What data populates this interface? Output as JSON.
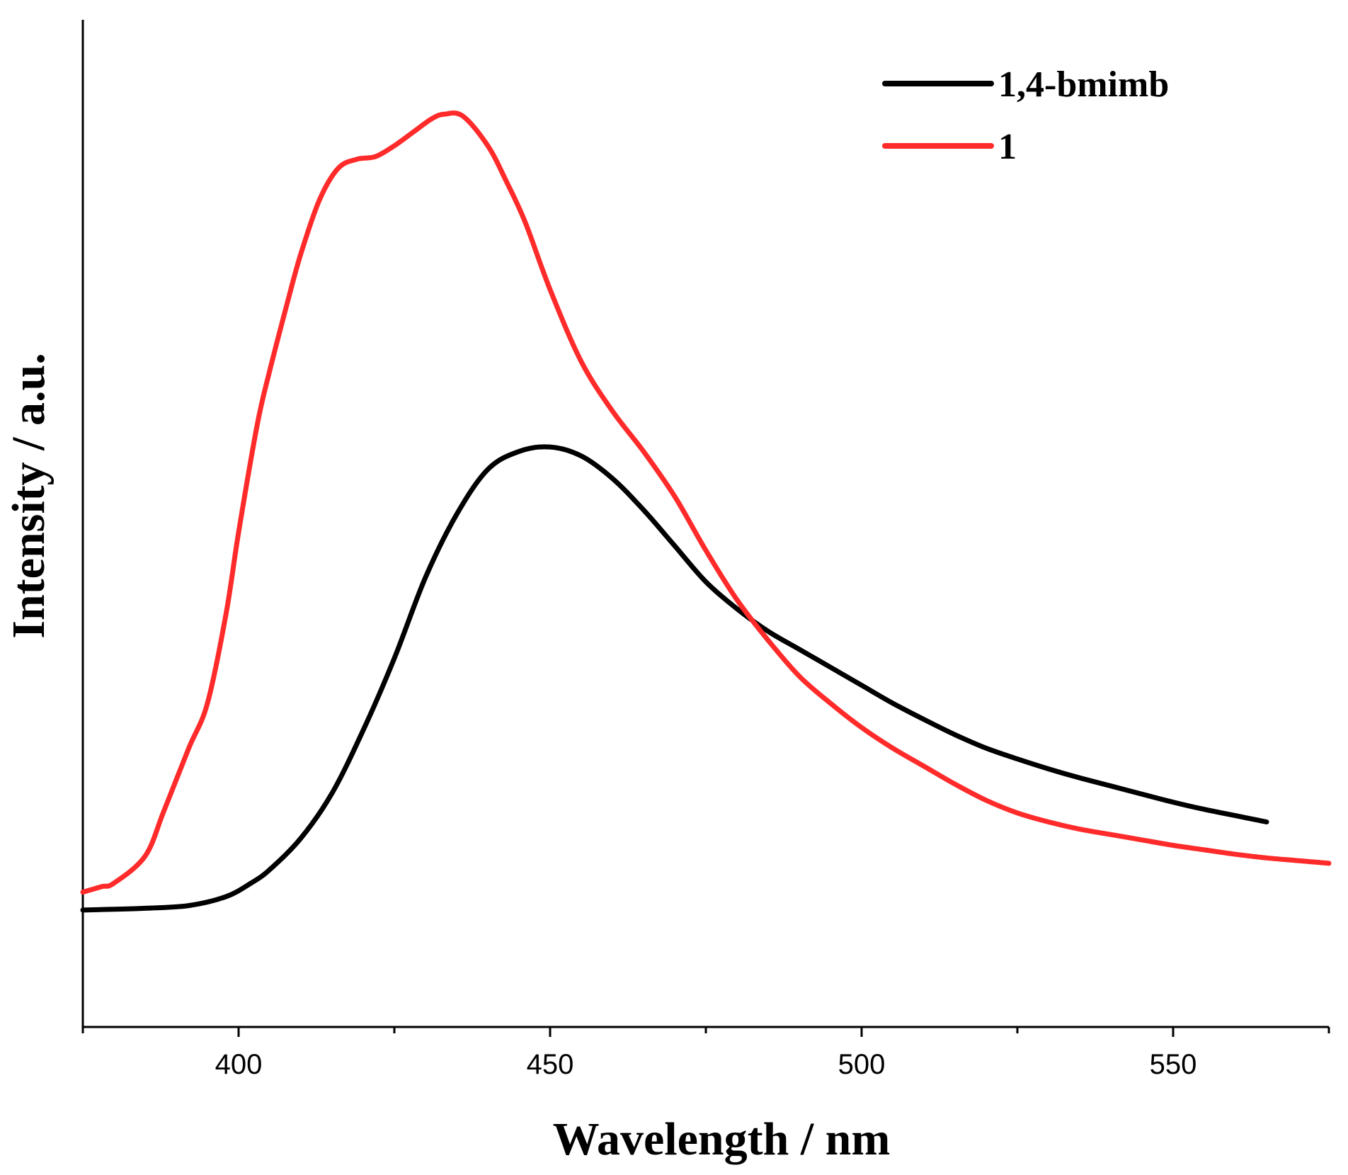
{
  "chart_data": {
    "type": "line",
    "title": "",
    "xlabel": "Wavelength / nm",
    "ylabel": "Intensity / a.u.",
    "xlim": [
      375,
      575
    ],
    "ylim": [
      -0.12,
      1.0
    ],
    "x_ticks_major": [
      400,
      450,
      500,
      550
    ],
    "x_ticks_minor": [
      375,
      425,
      475,
      525,
      575
    ],
    "y_ticks_shown": false,
    "grid": false,
    "legend_position": "top-right",
    "series": [
      {
        "name": "1,4-bmimb",
        "color": "#000000",
        "points": [
          [
            375,
            0.01
          ],
          [
            385,
            0.012
          ],
          [
            392,
            0.015
          ],
          [
            398,
            0.025
          ],
          [
            402,
            0.04
          ],
          [
            405,
            0.055
          ],
          [
            410,
            0.09
          ],
          [
            415,
            0.14
          ],
          [
            420,
            0.21
          ],
          [
            425,
            0.29
          ],
          [
            430,
            0.38
          ],
          [
            435,
            0.45
          ],
          [
            440,
            0.5
          ],
          [
            445,
            0.52
          ],
          [
            450,
            0.525
          ],
          [
            455,
            0.515
          ],
          [
            460,
            0.49
          ],
          [
            465,
            0.455
          ],
          [
            470,
            0.415
          ],
          [
            475,
            0.375
          ],
          [
            480,
            0.345
          ],
          [
            485,
            0.32
          ],
          [
            490,
            0.3
          ],
          [
            495,
            0.28
          ],
          [
            500,
            0.26
          ],
          [
            505,
            0.24
          ],
          [
            510,
            0.222
          ],
          [
            515,
            0.205
          ],
          [
            520,
            0.19
          ],
          [
            525,
            0.178
          ],
          [
            530,
            0.167
          ],
          [
            535,
            0.157
          ],
          [
            540,
            0.148
          ],
          [
            545,
            0.139
          ],
          [
            550,
            0.13
          ],
          [
            555,
            0.122
          ],
          [
            560,
            0.115
          ],
          [
            565,
            0.108
          ]
        ]
      },
      {
        "name": "1",
        "color": "#ff2a2a",
        "points": [
          [
            375,
            0.03
          ],
          [
            378,
            0.036
          ],
          [
            380,
            0.04
          ],
          [
            385,
            0.07
          ],
          [
            388,
            0.12
          ],
          [
            392,
            0.19
          ],
          [
            395,
            0.24
          ],
          [
            398,
            0.34
          ],
          [
            400,
            0.43
          ],
          [
            403,
            0.55
          ],
          [
            405,
            0.61
          ],
          [
            408,
            0.69
          ],
          [
            410,
            0.74
          ],
          [
            413,
            0.8
          ],
          [
            416,
            0.835
          ],
          [
            419,
            0.845
          ],
          [
            422,
            0.848
          ],
          [
            425,
            0.86
          ],
          [
            428,
            0.875
          ],
          [
            431,
            0.89
          ],
          [
            433,
            0.895
          ],
          [
            436,
            0.893
          ],
          [
            440,
            0.86
          ],
          [
            443,
            0.82
          ],
          [
            446,
            0.775
          ],
          [
            450,
            0.7
          ],
          [
            455,
            0.62
          ],
          [
            460,
            0.565
          ],
          [
            465,
            0.52
          ],
          [
            470,
            0.47
          ],
          [
            475,
            0.41
          ],
          [
            480,
            0.355
          ],
          [
            485,
            0.31
          ],
          [
            490,
            0.27
          ],
          [
            495,
            0.24
          ],
          [
            500,
            0.213
          ],
          [
            505,
            0.19
          ],
          [
            510,
            0.17
          ],
          [
            515,
            0.15
          ],
          [
            520,
            0.132
          ],
          [
            525,
            0.118
          ],
          [
            530,
            0.108
          ],
          [
            535,
            0.1
          ],
          [
            540,
            0.094
          ],
          [
            545,
            0.088
          ],
          [
            550,
            0.082
          ],
          [
            555,
            0.077
          ],
          [
            560,
            0.072
          ],
          [
            565,
            0.068
          ],
          [
            570,
            0.065
          ],
          [
            575,
            0.062
          ]
        ]
      }
    ]
  }
}
